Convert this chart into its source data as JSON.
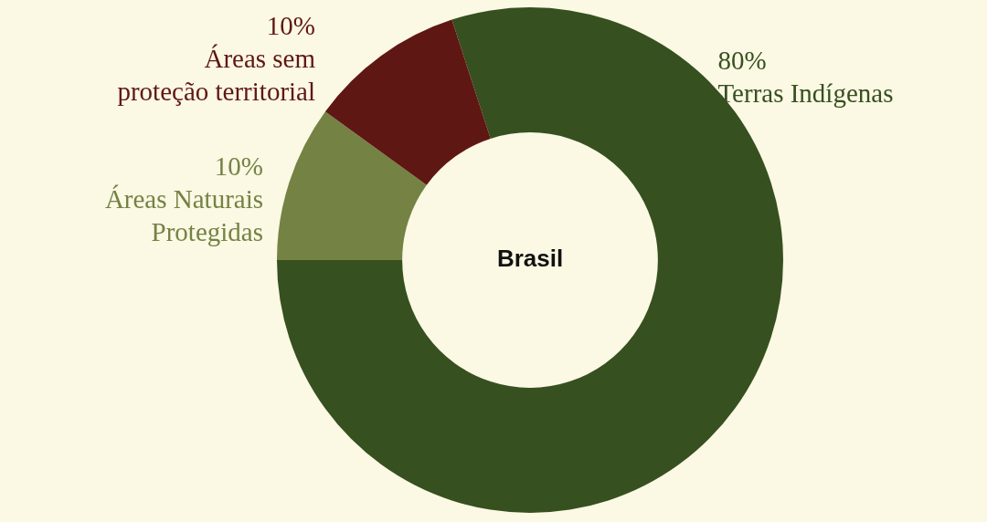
{
  "chart_data": {
    "type": "donut",
    "title": "Brasil",
    "categories": [
      "Terras Indígenas",
      "Áreas Naturais\nProtegidas",
      "Áreas sem\nproteção territorial"
    ],
    "values": [
      80,
      10,
      10
    ],
    "colors": [
      "#365020",
      "#748244",
      "#5f1713"
    ],
    "value_labels": [
      "80%",
      "10%",
      "10%"
    ],
    "legend": false
  }
}
